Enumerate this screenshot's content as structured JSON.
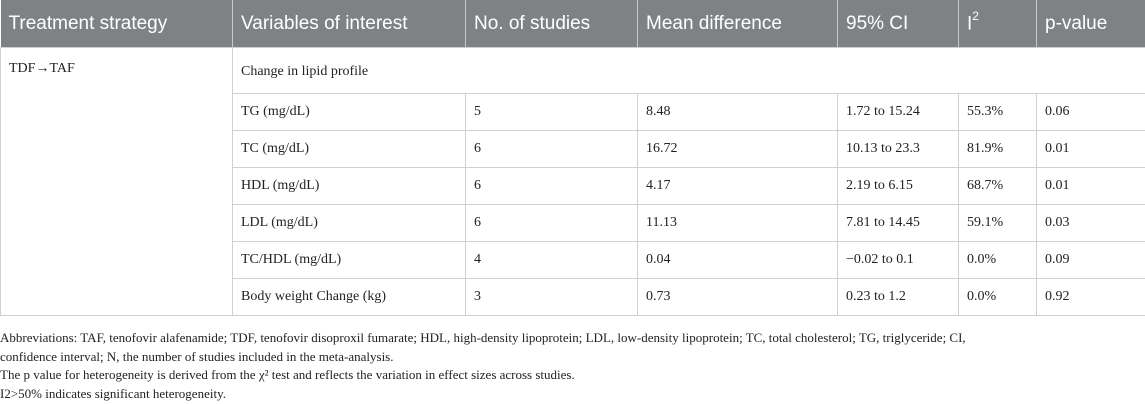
{
  "table": {
    "headers": {
      "strategy": "Treatment strategy",
      "variables": "Variables of interest",
      "studies": "No. of studies",
      "mean_diff": "Mean difference",
      "ci": "95% CI",
      "i2_base": "I",
      "i2_sup": "2",
      "pvalue": "p-value"
    },
    "strategy": "TDF→TAF",
    "group_label": "Change in lipid profile",
    "rows": [
      {
        "variable": "TG (mg/dL)",
        "studies": "5",
        "mean_diff": "8.48",
        "ci": "1.72 to 15.24",
        "i2": "55.3%",
        "p": "0.06"
      },
      {
        "variable": "TC (mg/dL)",
        "studies": "6",
        "mean_diff": "16.72",
        "ci": "10.13 to 23.3",
        "i2": "81.9%",
        "p": "0.01"
      },
      {
        "variable": "HDL (mg/dL)",
        "studies": "6",
        "mean_diff": "4.17",
        "ci": "2.19 to 6.15",
        "i2": "68.7%",
        "p": "0.01"
      },
      {
        "variable": "LDL (mg/dL)",
        "studies": "6",
        "mean_diff": "11.13",
        "ci": "7.81 to 14.45",
        "i2": "59.1%",
        "p": "0.03"
      },
      {
        "variable": "TC/HDL (mg/dL)",
        "studies": "4",
        "mean_diff": "0.04",
        "ci": "−0.02 to 0.1",
        "i2": "0.0%",
        "p": "0.09"
      },
      {
        "variable": "Body weight Change (kg)",
        "studies": "3",
        "mean_diff": "0.73",
        "ci": "0.23 to 1.2",
        "i2": "0.0%",
        "p": "0.92"
      }
    ]
  },
  "footnotes": {
    "abbreviations_1": "Abbreviations: TAF, tenofovir alafenamide; TDF, tenofovir disoproxil fumarate; HDL, high-density lipoprotein; LDL, low-density lipoprotein; TC, total cholesterol; TG, triglyceride; CI,",
    "abbreviations_2": "confidence interval; N, the number of studies included in the meta-analysis.",
    "heterogeneity": "The p value for heterogeneity is derived from the χ² test and reflects the variation in effect sizes across studies.",
    "significance": "I2>50% indicates significant heterogeneity."
  }
}
